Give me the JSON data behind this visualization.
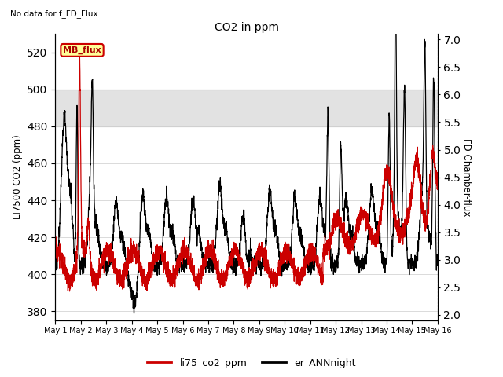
{
  "title": "CO2 in ppm",
  "subtitle": "No data for f_FD_Flux",
  "ylabel_left": "LI7500 CO2 (ppm)",
  "ylabel_right": "FD Chamber-flux",
  "ylim_left": [
    375,
    530
  ],
  "ylim_right": [
    1.9,
    7.1
  ],
  "yticks_left": [
    380,
    400,
    420,
    440,
    460,
    480,
    500,
    520
  ],
  "yticks_right": [
    2.0,
    2.5,
    3.0,
    3.5,
    4.0,
    4.5,
    5.0,
    5.5,
    6.0,
    6.5,
    7.0
  ],
  "xtick_labels": [
    "May 1",
    "May 2",
    "May 3",
    "May 4",
    "May 5",
    "May 6",
    "May 7",
    "May 8",
    "May 9",
    "May 10",
    "May 11",
    "May 12",
    "May 13",
    "May 14",
    "May 15",
    "May 16"
  ],
  "shaded_band": [
    480,
    500
  ],
  "legend_entries": [
    "li75_co2_ppm",
    "er_ANNnight"
  ],
  "legend_colors": [
    "#cc0000",
    "#000000"
  ],
  "line_color_red": "#cc0000",
  "line_color_black": "#000000",
  "annotation_box_text": "MB_flux",
  "annotation_box_color": "#ffff99",
  "annotation_box_edge": "#cc0000"
}
